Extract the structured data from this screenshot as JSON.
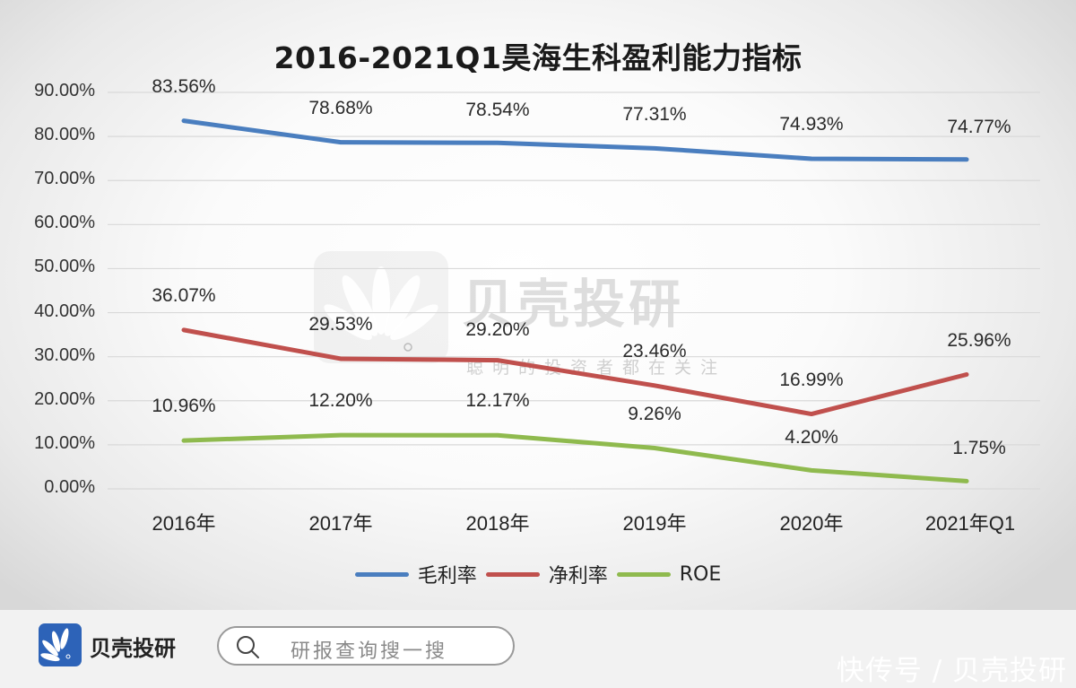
{
  "chart_data": {
    "type": "line",
    "title": "2016-2021Q1昊海生科盈利能力指标",
    "xlabel": "",
    "ylabel": "",
    "categories": [
      "2016年",
      "2017年",
      "2018年",
      "2019年",
      "2020年",
      "2021年Q1"
    ],
    "ylim": [
      0,
      90
    ],
    "yticks": [
      "90.00%",
      "80.00%",
      "70.00%",
      "60.00%",
      "50.00%",
      "40.00%",
      "30.00%",
      "20.00%",
      "10.00%",
      "0.00%"
    ],
    "grid": true,
    "legend_position": "bottom",
    "series": [
      {
        "name": "毛利率",
        "color": "#4a7ebf",
        "values": [
          83.56,
          78.68,
          78.54,
          77.31,
          74.93,
          74.77
        ],
        "labels": [
          "83.56%",
          "78.68%",
          "78.54%",
          "77.31%",
          "74.93%",
          "74.77%"
        ]
      },
      {
        "name": "净利率",
        "color": "#c0504d",
        "values": [
          36.07,
          29.53,
          29.2,
          23.46,
          16.99,
          25.96
        ],
        "labels": [
          "36.07%",
          "29.53%",
          "29.20%",
          "23.46%",
          "16.99%",
          "25.96%"
        ]
      },
      {
        "name": "ROE",
        "color": "#8fba4e",
        "values": [
          10.96,
          12.2,
          12.17,
          9.26,
          4.2,
          1.75
        ],
        "labels": [
          "10.96%",
          "12.20%",
          "12.17%",
          "9.26%",
          "4.20%",
          "1.75%"
        ]
      }
    ]
  },
  "watermark": {
    "name": "贝壳投研",
    "slogan": "聪明的投资者都在关注"
  },
  "footer": {
    "brand": "贝壳投研",
    "search_placeholder": "研报查询搜一搜",
    "source": "快传号 / 贝壳投研"
  }
}
